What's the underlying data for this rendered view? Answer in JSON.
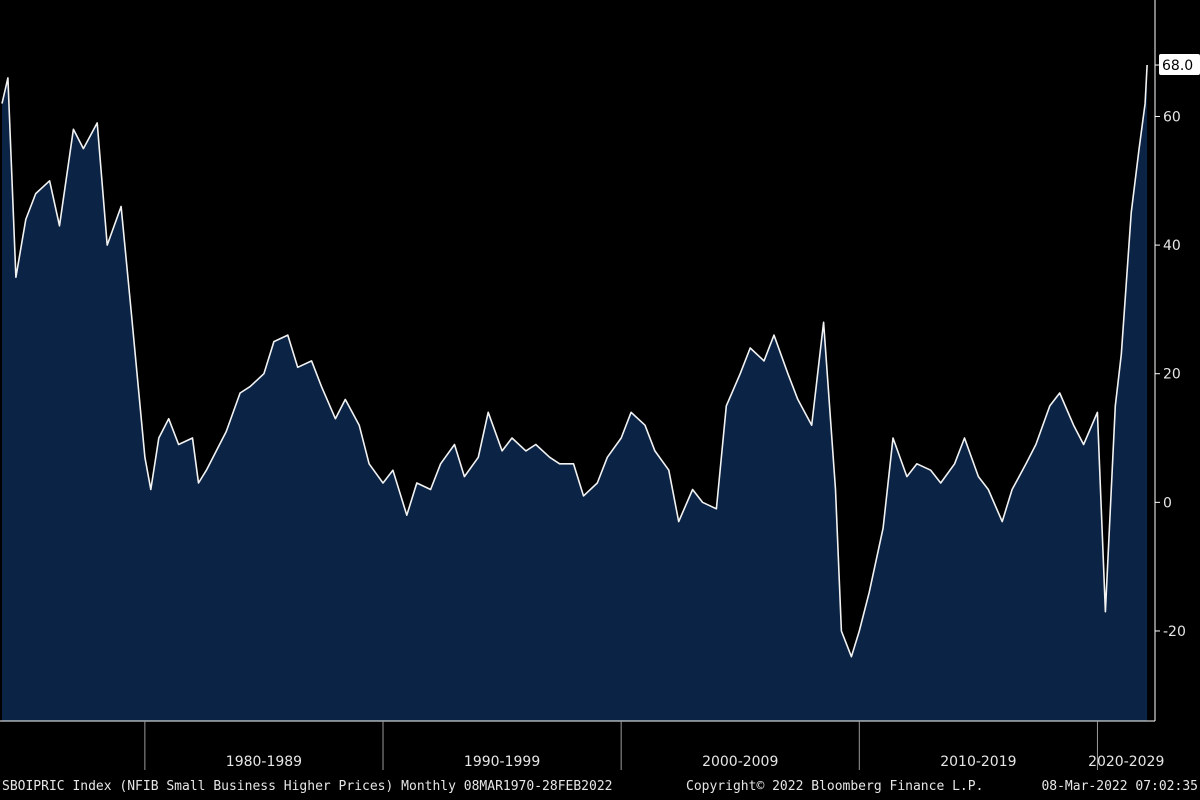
{
  "chart_data": {
    "type": "area",
    "series": [
      {
        "name": "",
        "x": [
          "1974-01",
          "1974-04",
          "1974-08",
          "1975-01",
          "1975-06",
          "1976-01",
          "1976-06",
          "1977-01",
          "1977-06",
          "1978-01",
          "1978-06",
          "1979-01",
          "1979-06",
          "1980-01",
          "1980-04",
          "1980-08",
          "1981-01",
          "1981-06",
          "1982-01",
          "1982-04",
          "1982-08",
          "1983-01",
          "1983-06",
          "1984-01",
          "1984-06",
          "1985-01",
          "1985-06",
          "1986-01",
          "1986-06",
          "1987-01",
          "1987-06",
          "1988-01",
          "1988-06",
          "1989-01",
          "1989-06",
          "1990-01",
          "1990-06",
          "1991-01",
          "1991-06",
          "1992-01",
          "1992-06",
          "1993-01",
          "1993-06",
          "1994-01",
          "1994-06",
          "1995-01",
          "1995-06",
          "1996-01",
          "1996-06",
          "1997-01",
          "1997-06",
          "1998-01",
          "1998-06",
          "1999-01",
          "1999-06",
          "2000-01",
          "2000-06",
          "2001-01",
          "2001-06",
          "2002-01",
          "2002-06",
          "2003-01",
          "2003-06",
          "2004-01",
          "2004-06",
          "2005-01",
          "2005-06",
          "2006-01",
          "2006-06",
          "2007-01",
          "2007-06",
          "2008-01",
          "2008-07",
          "2009-01",
          "2009-04",
          "2009-09",
          "2010-01",
          "2010-06",
          "2011-01",
          "2011-06",
          "2012-01",
          "2012-06",
          "2013-01",
          "2013-06",
          "2014-01",
          "2014-06",
          "2015-01",
          "2015-06",
          "2016-01",
          "2016-06",
          "2017-01",
          "2017-06",
          "2018-01",
          "2018-06",
          "2019-01",
          "2019-06",
          "2020-01",
          "2020-05",
          "2020-10",
          "2021-01",
          "2021-06",
          "2021-10",
          "2022-01",
          "2022-02"
        ],
        "values": [
          62,
          66,
          35,
          44,
          48,
          50,
          43,
          58,
          55,
          59,
          40,
          46,
          30,
          7,
          2,
          10,
          13,
          9,
          10,
          3,
          5,
          8,
          11,
          17,
          18,
          20,
          25,
          26,
          21,
          22,
          18,
          13,
          16,
          12,
          6,
          3,
          5,
          -2,
          3,
          2,
          6,
          9,
          4,
          7,
          14,
          8,
          10,
          8,
          9,
          7,
          6,
          6,
          1,
          3,
          7,
          10,
          14,
          12,
          8,
          5,
          -3,
          2,
          0,
          -1,
          15,
          20,
          24,
          22,
          26,
          20,
          16,
          12,
          28,
          2,
          -20,
          -24,
          -20,
          -14,
          -4,
          10,
          4,
          6,
          5,
          3,
          6,
          10,
          4,
          2,
          -3,
          2,
          6,
          9,
          15,
          17,
          12,
          9,
          14,
          -17,
          15,
          23,
          45,
          55,
          62,
          68
        ]
      }
    ],
    "ylim": [
      -34,
      75
    ],
    "y_ticks": [
      -20,
      0,
      20,
      40,
      60
    ],
    "last_value_label": "68.0",
    "x_period_labels": [
      "1980-1989",
      "1990-1999",
      "2000-2009",
      "2010-2019",
      "2020-2029"
    ],
    "x_period_starts": [
      "1980-01",
      "1990-01",
      "2000-01",
      "2010-01",
      "2020-01",
      "2030-01"
    ],
    "x_range": [
      "1973-12",
      "2022-06"
    ],
    "grid": false,
    "legend": "none",
    "colors": {
      "background": "#000000",
      "area_fill": "#0b2445",
      "line": "#f2f2f2",
      "axis": "#ffffff",
      "label_box": "#ffffff",
      "label_text": "#000000"
    }
  },
  "footer": {
    "left": "SBOIPRIC Index (NFIB Small Business Higher Prices)  Monthly 08MAR1970-28FEB2022",
    "middle": "Copyright© 2022 Bloomberg Finance L.P.",
    "right": "08-Mar-2022 07:02:35"
  }
}
